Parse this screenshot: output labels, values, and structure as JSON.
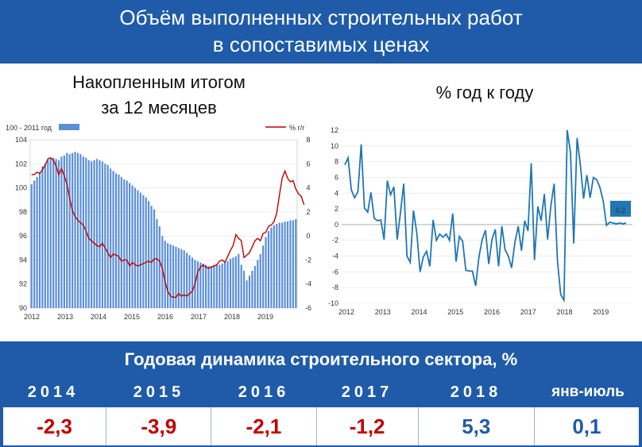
{
  "title_line1": "Объём выполненных строительных работ",
  "title_line2": "в сопоставимых ценах",
  "left_heading_line1": "Накопленным итогом",
  "left_heading_line2": "за 12 месяцев",
  "right_heading": "% год к году",
  "subtitle": "Годовая динамика строительного сектора, %",
  "table": {
    "years": [
      "2014",
      "2015",
      "2016",
      "2017",
      "2018",
      "янв-июль"
    ],
    "values": [
      "-2,3",
      "-3,9",
      "-2,1",
      "-1,2",
      "5,3",
      "0,1"
    ],
    "value_colors": [
      "#c00000",
      "#c00000",
      "#c00000",
      "#c00000",
      "#1f5ba8",
      "#1f5ba8"
    ]
  },
  "chart_data": [
    {
      "type": "bar",
      "legend": [
        {
          "name": "100 - 2011 год",
          "type": "bar",
          "color": "#5b8fd9"
        },
        {
          "name": "% г/г",
          "type": "line",
          "color": "#c00000"
        }
      ],
      "x_tick_labels": [
        "2012",
        "2013",
        "2014",
        "2015",
        "2016",
        "2017",
        "2018",
        "2019"
      ],
      "y_left_ticks": [
        "90",
        "92",
        "94",
        "96",
        "98",
        "100",
        "102",
        "104"
      ],
      "y_right_ticks": [
        "-6",
        "-4",
        "-2",
        "0",
        "2",
        "4",
        "6",
        "8"
      ],
      "ylim_left": [
        90,
        104
      ],
      "ylim_right": [
        -6,
        8
      ],
      "series": [
        {
          "name": "100 - 2011 год",
          "axis": "left",
          "values": [
            100.3,
            100.6,
            100.9,
            101.3,
            101.8,
            102.0,
            102.3,
            102.4,
            102.5,
            102.4,
            102.3,
            102.6,
            102.7,
            102.9,
            102.8,
            102.9,
            103.0,
            102.9,
            102.8,
            102.6,
            102.5,
            102.3,
            102.2,
            102.3,
            102.4,
            102.3,
            102.2,
            102.0,
            101.9,
            101.6,
            101.4,
            101.2,
            101.1,
            100.9,
            100.7,
            100.6,
            100.4,
            100.2,
            100.0,
            99.8,
            99.6,
            99.4,
            99.2,
            98.9,
            98.5,
            98.2,
            97.4,
            96.8,
            96.0,
            95.6,
            95.4,
            95.3,
            95.2,
            95.1,
            95.0,
            94.9,
            94.8,
            94.6,
            94.4,
            94.2,
            94.0,
            93.9,
            93.8,
            93.7,
            93.6,
            93.5,
            93.5,
            93.6,
            93.6,
            93.6,
            93.7,
            93.8,
            93.9,
            94.1,
            94.2,
            94.3,
            94.5,
            93.6,
            93.1,
            92.3,
            92.7,
            93.1,
            93.5,
            94.0,
            94.5,
            95.2,
            95.9,
            96.4,
            96.7,
            96.9,
            97.0,
            97.1,
            97.1,
            97.2,
            97.2,
            97.3,
            97.3,
            97.4
          ]
        },
        {
          "name": "% г/г",
          "axis": "right",
          "values": [
            5.1,
            5.1,
            5.3,
            5.2,
            5.5,
            5.9,
            6.4,
            6.5,
            6.3,
            5.8,
            5.1,
            5.6,
            5.0,
            4.3,
            3.1,
            2.1,
            1.6,
            1.3,
            1.1,
            0.9,
            0.4,
            -0.2,
            -0.4,
            -0.6,
            -0.8,
            -0.9,
            -0.6,
            -1.0,
            -1.4,
            -1.8,
            -1.5,
            -1.6,
            -1.7,
            -2.1,
            -2.0,
            -2.0,
            -2.5,
            -2.2,
            -2.4,
            -2.5,
            -2.4,
            -2.3,
            -2.2,
            -2.1,
            -2.2,
            -1.9,
            -1.9,
            -2.1,
            -2.7,
            -3.8,
            -4.6,
            -5.0,
            -5.1,
            -5.1,
            -4.8,
            -5.0,
            -4.9,
            -5.0,
            -4.8,
            -4.6,
            -4.0,
            -3.0,
            -2.6,
            -2.4,
            -2.6,
            -2.7,
            -2.6,
            -2.5,
            -2.4,
            -2.1,
            -2.0,
            -2.2,
            -1.7,
            -1.2,
            -0.8,
            0.1,
            -0.2,
            -0.4,
            -1.8,
            -1.6,
            -1.4,
            -0.9,
            -0.4,
            -0.2,
            -0.4,
            0.2,
            0.3,
            0.8,
            0.9,
            1.2,
            1.9,
            3.4,
            4.8,
            5.4,
            4.8,
            4.5,
            4.6,
            3.9,
            3.5,
            3.3,
            2.6
          ]
        }
      ]
    },
    {
      "type": "line",
      "x_tick_labels": [
        "2012",
        "2013",
        "2014",
        "2015",
        "2016",
        "2017",
        "2018",
        "2019"
      ],
      "y_ticks": [
        "-10",
        "-8",
        "-6",
        "-4",
        "-2",
        "0",
        "2",
        "4",
        "6",
        "8",
        "10",
        "12"
      ],
      "ylim": [
        -10,
        12
      ],
      "annotation": "0.2",
      "series": [
        {
          "values": [
            7.6,
            8.5,
            4.4,
            3.4,
            4.2,
            10.2,
            2.1,
            1.6,
            4.1,
            0.8,
            0.5,
            0.6,
            -1.9,
            5.6,
            3.8,
            4.8,
            -1.9,
            1.5,
            5.2,
            -4.0,
            -4.8,
            1.8,
            -1.1,
            -6.0,
            -4.1,
            -3.4,
            -5.3,
            0.6,
            -2.0,
            -1.2,
            -1.6,
            -1.2,
            -2.0,
            1.4,
            -4.7,
            -1.5,
            -2.1,
            -5.8,
            -5.9,
            -5.9,
            -7.8,
            -4.1,
            -1.9,
            -0.7,
            -5.0,
            -1.9,
            -0.6,
            -5.3,
            -0.2,
            -3.2,
            -4.0,
            -5.5,
            -2.3,
            -0.2,
            -3.3,
            0.5,
            -0.8,
            7.8,
            -4.5,
            2.3,
            0.5,
            3.9,
            -1.9,
            2.4,
            5.2,
            -4.6,
            -8.9,
            -9.6,
            12.0,
            9.2,
            -2.4,
            11.0,
            7.6,
            3.3,
            6.3,
            3.4,
            6.0,
            5.7,
            4.7,
            3.0,
            -0.1,
            0.3,
            0.2,
            0.1,
            0.2,
            0.1,
            0.2
          ]
        }
      ]
    }
  ]
}
